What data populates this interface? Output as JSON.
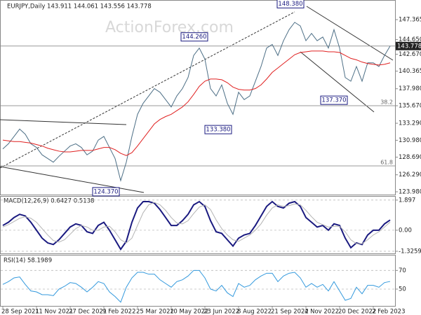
{
  "chart_data": [
    {
      "type": "line",
      "title": "EURJPY,Daily  143.911 144.061 143.556 143.778",
      "watermark": "ActionForex.com",
      "categories": [
        "28 Sep 2021",
        null,
        null,
        null,
        null,
        null,
        "11 Nov 2021",
        null,
        null,
        null,
        null,
        null,
        "27 Dec 2021",
        null,
        null,
        null,
        null,
        null,
        "9 Feb 2022",
        null,
        null,
        null,
        null,
        null,
        "25 Mar 2022",
        null,
        null,
        null,
        null,
        null,
        "10 May 2022",
        null,
        null,
        null,
        null,
        null,
        "23 Jun 2022",
        null,
        null,
        null,
        null,
        null,
        "8 Aug 2022",
        null,
        null,
        null,
        null,
        null,
        "21 Sep 2022",
        null,
        null,
        null,
        null,
        null,
        "4 Nov 2022",
        null,
        null,
        null,
        null,
        null,
        "20 Dec 2022",
        null,
        null,
        null,
        null,
        null,
        "2 Feb 2023",
        null,
        null,
        null
      ],
      "series": [
        {
          "color": "#4d6f86",
          "values": [
            129.8,
            130.5,
            131.5,
            132.5,
            131.8,
            130.5,
            130.0,
            129.0,
            128.5,
            128.0,
            128.8,
            129.5,
            130.2,
            130.5,
            130.0,
            129.0,
            129.5,
            131.0,
            131.5,
            130.0,
            128.5,
            125.5,
            128.0,
            131.5,
            134.5,
            136.0,
            137.0,
            138.0,
            137.5,
            136.5,
            135.5,
            137.0,
            138.0,
            139.5,
            142.5,
            143.5,
            142.0,
            138.0,
            137.0,
            138.5,
            136.0,
            134.5,
            137.5,
            136.5,
            137.0,
            139.0,
            141.0,
            143.5,
            144.0,
            142.5,
            144.5,
            146.0,
            147.0,
            146.5,
            144.5,
            145.5,
            144.5,
            145.0,
            143.5,
            146.0,
            143.5,
            139.5,
            139.0,
            141.0,
            139.0,
            141.5,
            141.5,
            141.0,
            142.5,
            143.778
          ]
        },
        {
          "color": "#e02020",
          "values": [
            131.0,
            130.9,
            130.8,
            130.8,
            130.7,
            130.6,
            130.4,
            130.2,
            129.9,
            129.7,
            129.5,
            129.4,
            129.4,
            129.5,
            129.6,
            129.6,
            129.6,
            129.8,
            130.0,
            130.0,
            129.7,
            129.2,
            128.9,
            129.3,
            130.2,
            131.2,
            132.2,
            133.2,
            133.8,
            134.2,
            134.5,
            135.0,
            135.5,
            136.2,
            137.2,
            138.3,
            139.0,
            139.3,
            139.3,
            139.2,
            138.8,
            138.2,
            137.9,
            137.8,
            137.8,
            138.0,
            138.5,
            139.3,
            140.2,
            140.8,
            141.4,
            142.0,
            142.6,
            142.9,
            143.0,
            143.1,
            143.1,
            143.1,
            143.0,
            143.0,
            142.9,
            142.5,
            142.1,
            141.9,
            141.6,
            141.4,
            141.3,
            141.2,
            141.3,
            141.5
          ]
        }
      ],
      "ylim": [
        123.6,
        149.84
      ],
      "yticks": [
        147.365,
        {
          "value": 144.65,
          "label": "144.650"
        },
        {
          "value": 142.67,
          "label": "142.670"
        },
        140.365,
        {
          "value": 137.98,
          "label": "137.980"
        },
        {
          "value": 135.67,
          "label": "135.670"
        },
        {
          "value": 133.29,
          "label": "133.290"
        },
        {
          "value": 130.98,
          "label": "130.980"
        },
        {
          "value": 128.69,
          "label": "128.690"
        },
        {
          "value": 126.29,
          "label": "126.290"
        },
        {
          "value": 123.98,
          "label": "123.980"
        }
      ],
      "levels": [
        {
          "value": 135.67,
          "label": "38.2"
        },
        {
          "value": 127.5,
          "label": "61.8"
        }
      ],
      "annotations": [
        {
          "value": 148.38,
          "label": "148.380"
        },
        {
          "value": 144.26,
          "label": "144.260"
        },
        {
          "value": 137.37,
          "label": "137.370"
        },
        {
          "value": 133.38,
          "label": "133.380"
        },
        {
          "value": 124.37,
          "label": "124.370"
        }
      ],
      "last_price": 143.778
    },
    {
      "type": "line",
      "title": "MACD(12,26,9) 0.6427 0.5138",
      "series": [
        {
          "color": "#1a1a80",
          "values": [
            0.3,
            0.5,
            0.8,
            1.0,
            0.9,
            0.5,
            0.0,
            -0.5,
            -0.8,
            -0.9,
            -0.6,
            -0.2,
            0.2,
            0.4,
            0.3,
            -0.1,
            -0.2,
            0.3,
            0.5,
            0.0,
            -0.6,
            -1.2,
            -0.7,
            0.5,
            1.4,
            1.8,
            1.8,
            1.7,
            1.3,
            0.8,
            0.3,
            0.3,
            0.6,
            1.0,
            1.6,
            1.8,
            1.5,
            0.6,
            -0.1,
            -0.2,
            -0.6,
            -1.0,
            -0.5,
            -0.3,
            -0.2,
            0.3,
            0.9,
            1.5,
            1.8,
            1.5,
            1.4,
            1.7,
            1.8,
            1.5,
            0.8,
            0.5,
            0.2,
            0.3,
            0.0,
            0.4,
            0.3,
            -0.5,
            -1.1,
            -0.8,
            -0.9,
            -0.3,
            0.0,
            0.0,
            0.4,
            0.6427
          ]
        },
        {
          "color": "#b4b4b4",
          "values": [
            0.2,
            0.35,
            0.55,
            0.75,
            0.85,
            0.75,
            0.5,
            0.1,
            -0.3,
            -0.65,
            -0.75,
            -0.6,
            -0.25,
            0.1,
            0.3,
            0.2,
            0.0,
            0.0,
            0.2,
            0.25,
            -0.1,
            -0.6,
            -0.8,
            -0.5,
            0.3,
            1.1,
            1.6,
            1.75,
            1.6,
            1.25,
            0.8,
            0.45,
            0.4,
            0.6,
            1.05,
            1.45,
            1.6,
            1.3,
            0.65,
            0.1,
            -0.3,
            -0.6,
            -0.7,
            -0.5,
            -0.3,
            0.0,
            0.4,
            0.95,
            1.4,
            1.6,
            1.5,
            1.55,
            1.65,
            1.6,
            1.25,
            0.85,
            0.5,
            0.35,
            0.2,
            0.25,
            0.25,
            -0.1,
            -0.6,
            -0.85,
            -0.85,
            -0.6,
            -0.3,
            -0.1,
            0.2,
            0.5138
          ]
        }
      ],
      "ylim": [
        -1.46,
        2.11
      ],
      "yticks": [
        1.897,
        {
          "value": 0,
          "label": "0.00"
        },
        -1.3259
      ]
    },
    {
      "type": "line",
      "title": "RSI(14) 58.1989",
      "series": [
        {
          "color": "#3399dd",
          "values": [
            55,
            58,
            62,
            63,
            55,
            48,
            47,
            44,
            44,
            43,
            50,
            53,
            57,
            56,
            52,
            47,
            52,
            58,
            56,
            47,
            42,
            36,
            52,
            62,
            68,
            68,
            66,
            66,
            60,
            56,
            52,
            58,
            60,
            64,
            70,
            70,
            62,
            50,
            48,
            54,
            46,
            42,
            56,
            52,
            54,
            60,
            64,
            67,
            67,
            58,
            64,
            67,
            68,
            62,
            52,
            56,
            52,
            55,
            48,
            58,
            48,
            38,
            40,
            52,
            45,
            54,
            54,
            52,
            57,
            58.1989
          ]
        }
      ],
      "ylim": [
        32,
        86
      ],
      "yticks": [
        70,
        50
      ]
    }
  ]
}
